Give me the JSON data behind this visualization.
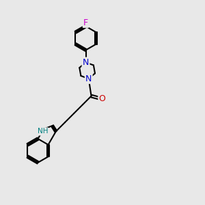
{
  "background_color": "#e8e8e8",
  "bond_color": "#000000",
  "bond_width": 1.5,
  "atom_colors": {
    "N": "#0000cc",
    "O": "#cc0000",
    "F": "#cc00cc",
    "NH": "#008080",
    "C": "#000000"
  },
  "font_size": 9,
  "label_font_size": 9
}
